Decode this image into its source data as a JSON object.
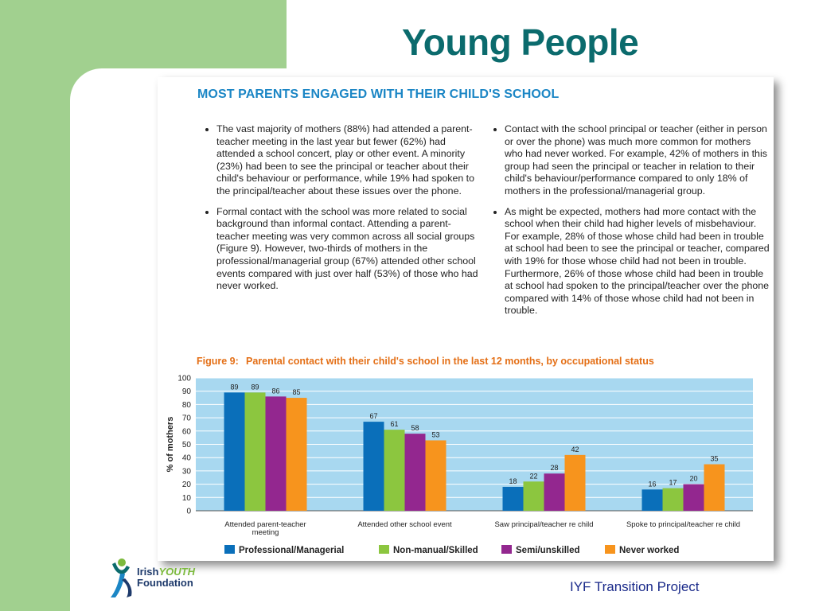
{
  "slide": {
    "title": "Young People",
    "footer": "IYF Transition Project",
    "logo": {
      "line1_a": "Irish",
      "line1_b": "YOUTH",
      "line2": "Foundation"
    }
  },
  "document": {
    "heading": "MOST PARENTS ENGAGED WITH THEIR CHILD'S SCHOOL",
    "left_bullets": [
      "The vast majority of mothers (88%) had attended a parent-teacher meeting in the last year but fewer (62%) had attended a school concert, play or other event. A minority (23%) had been to see the principal or teacher about their child's behaviour or performance, while 19% had spoken to the principal/teacher about these issues over the phone.",
      "Formal contact with the school was more related to social background than informal contact. Attending a parent-teacher meeting was very common across all social groups (Figure 9). However, two-thirds of mothers in the professional/managerial group (67%) attended other school events compared with just over half (53%) of those who had never worked."
    ],
    "right_bullets": [
      "Contact with the school principal or teacher (either in person or over the phone) was much more common for mothers who had never worked. For example, 42% of mothers in this group had seen the principal or teacher in relation to their child's behaviour/performance compared to only 18% of mothers in the professional/managerial group.",
      "As might be expected, mothers had more contact with the school when their child had higher levels of misbehaviour. For example, 28% of those whose child had been in trouble at school had been to see the principal or teacher, compared with 19% for those whose child had not been in trouble. Furthermore, 26% of those whose child had been in trouble at school had spoken to the principal/teacher over the phone compared with 14% of those whose child had not been in trouble."
    ],
    "figure_number": "Figure 9:",
    "figure_title": "Parental contact with their child's school in the last 12 months, by occupational status"
  },
  "chart_data": {
    "type": "bar",
    "title": "Parental contact with their child's school in the last 12 months, by occupational status",
    "ylabel": "% of mothers",
    "xlabel": "",
    "ylim": [
      0,
      100
    ],
    "yticks": [
      0,
      10,
      20,
      30,
      40,
      50,
      60,
      70,
      80,
      90,
      100
    ],
    "grid": true,
    "legend_position": "bottom",
    "categories": [
      [
        "Attended parent-teacher",
        "meeting"
      ],
      [
        "Attended other school event"
      ],
      [
        "Saw principal/teacher re child"
      ],
      [
        "Spoke to principal/teacher re child"
      ]
    ],
    "series": [
      {
        "name": "Professional/Managerial",
        "color": "#0a6fba",
        "values": [
          89,
          67,
          18,
          16
        ]
      },
      {
        "name": "Non-manual/Skilled",
        "color": "#8cc63f",
        "values": [
          89,
          61,
          22,
          17
        ]
      },
      {
        "name": "Semi/unskilled",
        "color": "#93278f",
        "values": [
          86,
          58,
          28,
          20
        ]
      },
      {
        "name": "Never worked",
        "color": "#f7941d",
        "values": [
          85,
          53,
          42,
          35
        ]
      }
    ],
    "plot_background": "#a8d8f0"
  }
}
